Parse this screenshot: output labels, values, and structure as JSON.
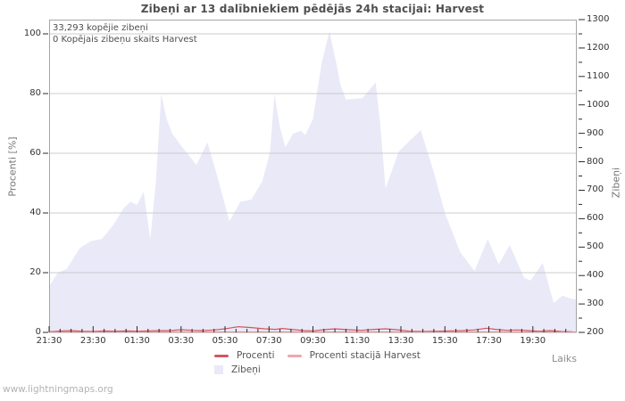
{
  "page": {
    "watermark": "www.lightningmaps.org"
  },
  "chart_data": {
    "type": "area",
    "title": "Zibeņi ar 13 dalībniekiem pēdējās 24h stacijai: Harvest",
    "xlabel": "Laiks",
    "ylabel_left": "Procenti  [%]",
    "ylabel_right": "Zibeņi",
    "annotations": [
      "33,293 kopējie zibeņi",
      "0 Kopējais zibeņu skaits Harvest"
    ],
    "grid": "horizontal-only",
    "legend_position": "bottom-center",
    "x_axis": {
      "unit": "time (hours after 21:30)",
      "domain": [
        0,
        24
      ],
      "minor_step_h": 0.5,
      "major_step_h": 2,
      "ticks": [
        {
          "t": 0,
          "label": "21:30"
        },
        {
          "t": 2,
          "label": "23:30"
        },
        {
          "t": 4,
          "label": "01:30"
        },
        {
          "t": 6,
          "label": "03:30"
        },
        {
          "t": 8,
          "label": "05:30"
        },
        {
          "t": 10,
          "label": "07:30"
        },
        {
          "t": 12,
          "label": "09:30"
        },
        {
          "t": 14,
          "label": "11:30"
        },
        {
          "t": 16,
          "label": "13:30"
        },
        {
          "t": 18,
          "label": "15:30"
        },
        {
          "t": 20,
          "label": "17:30"
        },
        {
          "t": 22,
          "label": "19:30"
        }
      ]
    },
    "left_axis": {
      "min": 0,
      "max": 100,
      "ticks": [
        0,
        20,
        40,
        60,
        80,
        100
      ],
      "gridlines": [
        20,
        40,
        60,
        80,
        100
      ],
      "right_value_at_max": 1250
    },
    "right_axis": {
      "min": 200,
      "max": 1300,
      "major_step": 100,
      "minor_step": 50,
      "ticks": [
        200,
        300,
        400,
        500,
        600,
        700,
        800,
        900,
        1000,
        1100,
        1200,
        1300
      ]
    },
    "series": [
      {
        "name": "Zibeņi",
        "type": "area",
        "axis": "right",
        "color": "#e9e9f8",
        "points": [
          [
            0,
            361
          ],
          [
            0.4,
            410
          ],
          [
            0.8,
            423
          ],
          [
            1.4,
            497
          ],
          [
            1.9,
            521
          ],
          [
            2.4,
            528
          ],
          [
            2.9,
            575
          ],
          [
            3.4,
            638
          ],
          [
            3.7,
            659
          ],
          [
            4,
            648
          ],
          [
            4.3,
            695
          ],
          [
            4.6,
            528
          ],
          [
            4.85,
            720
          ],
          [
            5.1,
            1037
          ],
          [
            5.35,
            950
          ],
          [
            5.6,
            899
          ],
          [
            5.85,
            873
          ],
          [
            6,
            857
          ],
          [
            6.7,
            789
          ],
          [
            7.2,
            868
          ],
          [
            7.6,
            763
          ],
          [
            8.2,
            591
          ],
          [
            8.7,
            659
          ],
          [
            9.2,
            667
          ],
          [
            9.7,
            732
          ],
          [
            10.05,
            836
          ],
          [
            10.25,
            1037
          ],
          [
            10.5,
            920
          ],
          [
            10.75,
            852
          ],
          [
            11.1,
            899
          ],
          [
            11.45,
            909
          ],
          [
            11.65,
            894
          ],
          [
            12,
            950
          ],
          [
            12.4,
            1150
          ],
          [
            12.75,
            1259
          ],
          [
            13.05,
            1150
          ],
          [
            13.25,
            1071
          ],
          [
            13.5,
            1019
          ],
          [
            14.25,
            1024
          ],
          [
            14.85,
            1079
          ],
          [
            15.05,
            941
          ],
          [
            15.3,
            706
          ],
          [
            15.9,
            836
          ],
          [
            16.9,
            911
          ],
          [
            17.5,
            763
          ],
          [
            18,
            620
          ],
          [
            18.7,
            481
          ],
          [
            19.35,
            416
          ],
          [
            19.95,
            528
          ],
          [
            20.45,
            439
          ],
          [
            20.95,
            507
          ],
          [
            21.6,
            392
          ],
          [
            21.9,
            382
          ],
          [
            22.45,
            444
          ],
          [
            22.95,
            303
          ],
          [
            23.35,
            329
          ],
          [
            23.7,
            319
          ],
          [
            24,
            315
          ]
        ]
      },
      {
        "name": "Procenti",
        "type": "line",
        "axis": "left",
        "color": "#d4565e",
        "points": [
          [
            0,
            0.2
          ],
          [
            0.6,
            0.5
          ],
          [
            1,
            0.6
          ],
          [
            1.5,
            0.4
          ],
          [
            2,
            0.3
          ],
          [
            2.5,
            0.5
          ],
          [
            3,
            0.4
          ],
          [
            3.5,
            0.5
          ],
          [
            4,
            0.4
          ],
          [
            4.5,
            0.5
          ],
          [
            5,
            0.6
          ],
          [
            5.5,
            0.6
          ],
          [
            6,
            0.9
          ],
          [
            6.5,
            0.7
          ],
          [
            7,
            0.6
          ],
          [
            7.5,
            0.8
          ],
          [
            8,
            1.2
          ],
          [
            8.6,
            1.9
          ],
          [
            9.2,
            1.6
          ],
          [
            9.8,
            1.2
          ],
          [
            10.3,
            1
          ],
          [
            10.6,
            1.3
          ],
          [
            11,
            1
          ],
          [
            11.6,
            0.6
          ],
          [
            12,
            0.5
          ],
          [
            12.5,
            0.9
          ],
          [
            13,
            1.2
          ],
          [
            13.6,
            0.9
          ],
          [
            14.2,
            0.7
          ],
          [
            14.8,
            1
          ],
          [
            15.3,
            1.2
          ],
          [
            15.8,
            0.9
          ],
          [
            16.4,
            0.4
          ],
          [
            17,
            0.3
          ],
          [
            17.6,
            0.4
          ],
          [
            18.2,
            0.5
          ],
          [
            18.8,
            0.6
          ],
          [
            19.3,
            0.8
          ],
          [
            19.9,
            1.4
          ],
          [
            20.3,
            1
          ],
          [
            20.8,
            0.7
          ],
          [
            21.3,
            0.8
          ],
          [
            21.8,
            0.6
          ],
          [
            22.3,
            0.4
          ],
          [
            22.8,
            0.6
          ],
          [
            23.3,
            0.3
          ],
          [
            23.8,
            0.2
          ]
        ]
      },
      {
        "name": "Procenti stacijā Harvest",
        "type": "line",
        "axis": "left",
        "color": "#f2a6a9",
        "points": [
          [
            0,
            0
          ],
          [
            24,
            0
          ]
        ]
      }
    ],
    "colors": {
      "grid": "#cccccc",
      "border": "#a5a5a5",
      "tick": "#2b2b2b"
    }
  }
}
